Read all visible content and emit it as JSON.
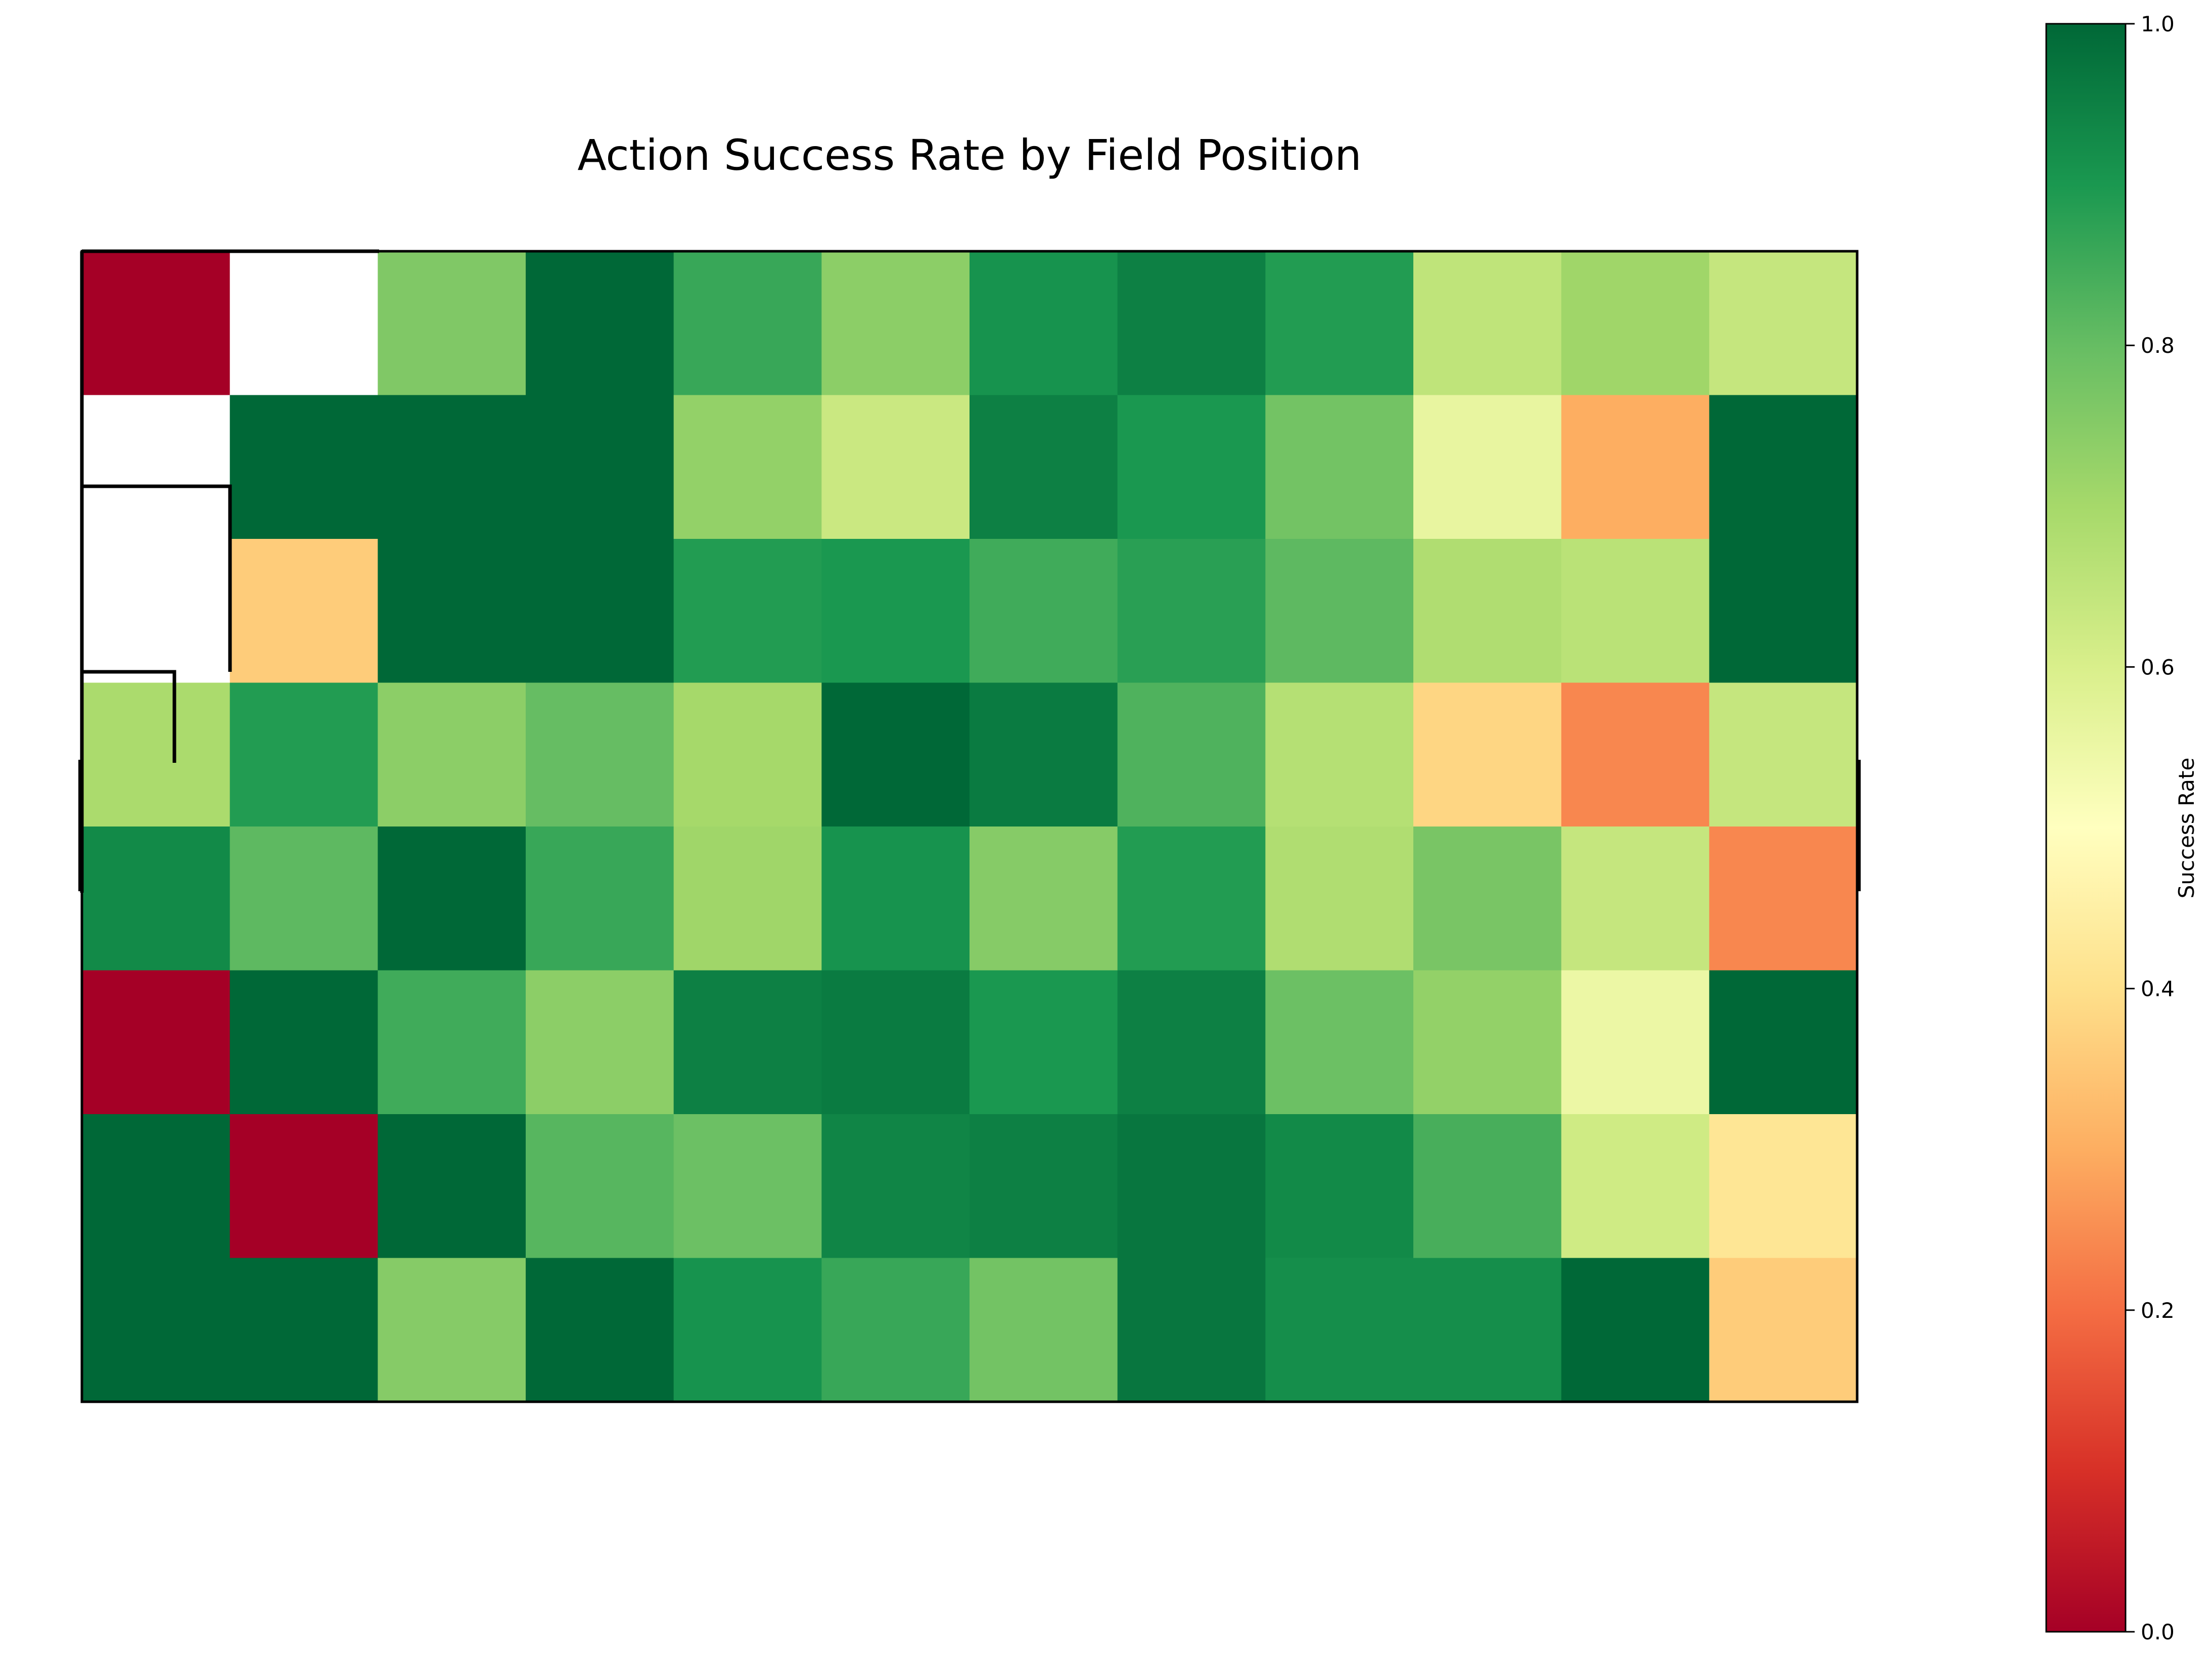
{
  "chart_data": {
    "type": "heatmap",
    "title": "Action Success Rate by Field Position",
    "colorbar": {
      "label": "Success Rate",
      "range": [
        0.0,
        1.0
      ],
      "ticks": [
        0.0,
        0.2,
        0.4,
        0.6,
        0.8,
        1.0
      ],
      "tick_labels": [
        "0.0",
        "0.2",
        "0.4",
        "0.6",
        "0.8",
        "1.0"
      ],
      "colormap": "RdYlGn"
    },
    "grid": {
      "rows": 8,
      "cols": 12
    },
    "values": [
      [
        0.0,
        null,
        0.76,
        1.0,
        0.86,
        0.74,
        0.91,
        0.95,
        0.89,
        0.65,
        0.71,
        0.64
      ],
      [
        null,
        1.0,
        1.0,
        1.0,
        0.73,
        0.63,
        0.95,
        0.9,
        0.78,
        0.56,
        0.3,
        1.0
      ],
      [
        null,
        0.36,
        1.0,
        1.0,
        0.89,
        0.9,
        0.85,
        0.88,
        0.81,
        0.68,
        0.66,
        1.0
      ],
      [
        0.69,
        0.89,
        0.74,
        0.8,
        0.7,
        1.0,
        0.96,
        0.83,
        0.67,
        0.38,
        0.24,
        0.64
      ],
      [
        0.93,
        0.81,
        1.0,
        0.86,
        0.71,
        0.91,
        0.75,
        0.89,
        0.68,
        0.77,
        0.64,
        0.24
      ],
      [
        0.0,
        1.0,
        0.85,
        0.74,
        0.95,
        0.96,
        0.9,
        0.95,
        0.79,
        0.73,
        0.55,
        1.0
      ],
      [
        1.0,
        0.0,
        1.0,
        0.82,
        0.79,
        0.94,
        0.95,
        0.97,
        0.93,
        0.84,
        0.62,
        0.42
      ],
      [
        1.0,
        1.0,
        0.75,
        1.0,
        0.91,
        0.86,
        0.78,
        0.97,
        0.92,
        0.92,
        1.0,
        0.36
      ]
    ]
  }
}
